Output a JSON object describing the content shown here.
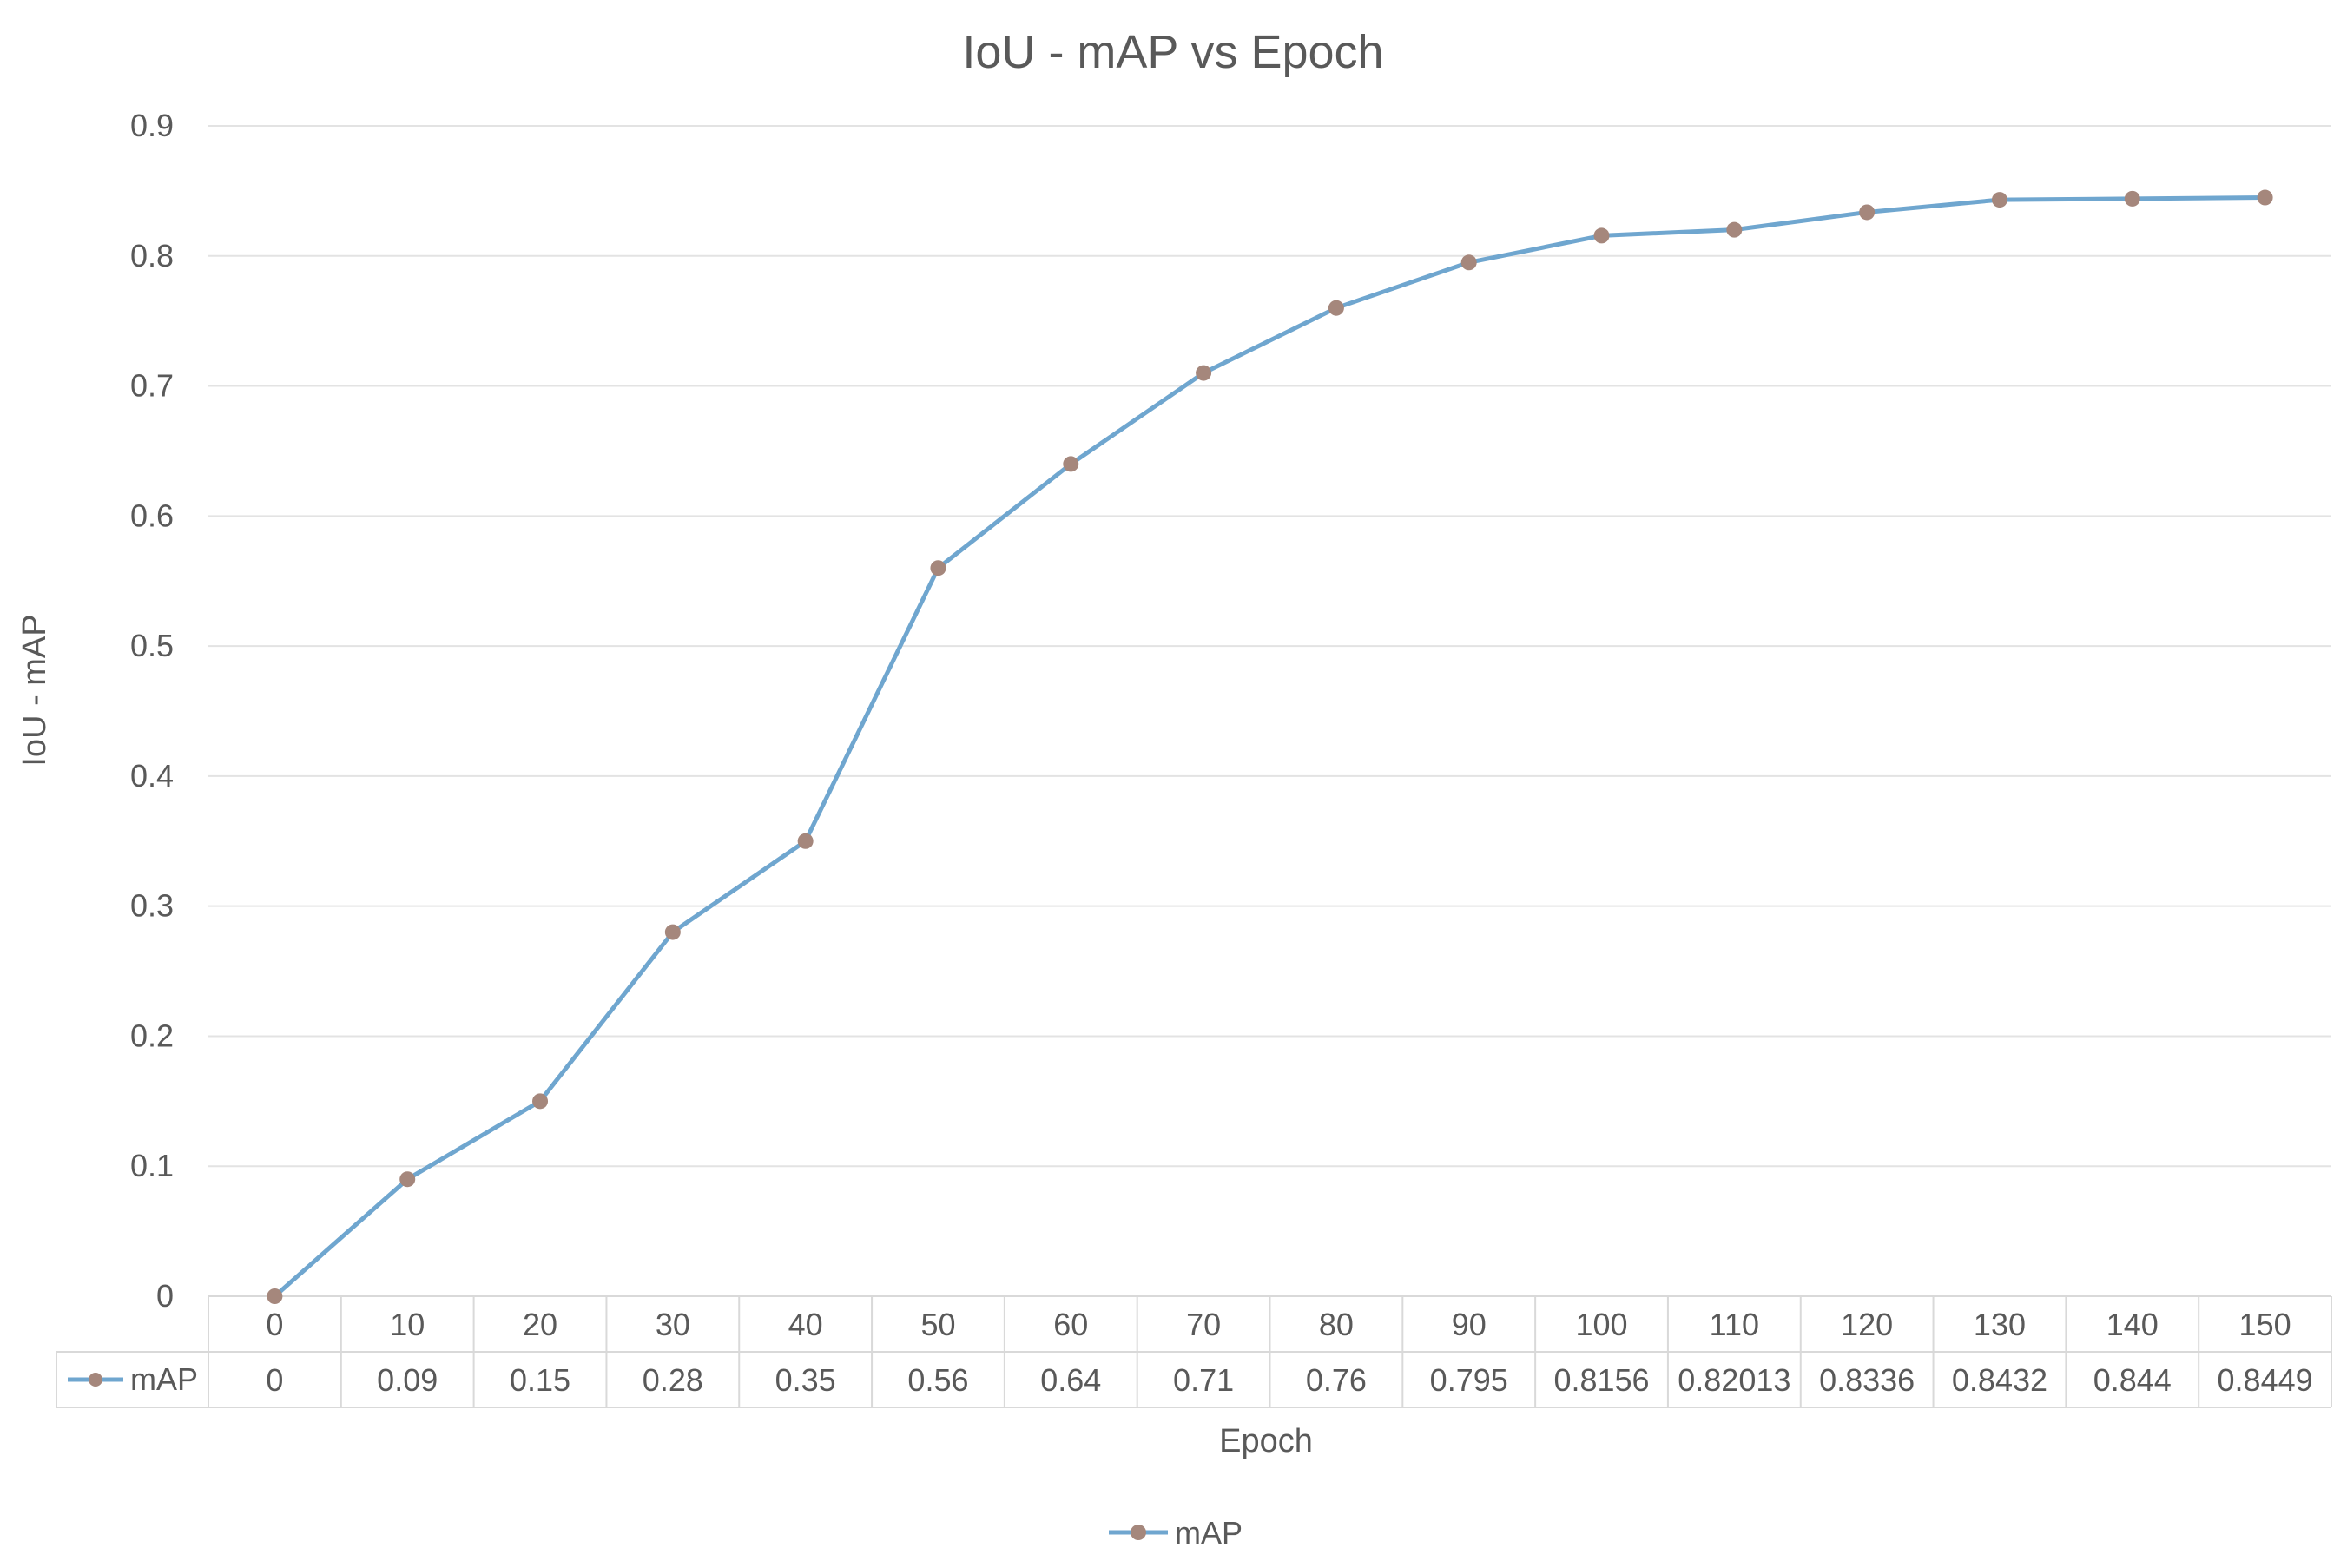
{
  "chart_data": {
    "type": "line",
    "title": "IoU - mAP vs Epoch",
    "xlabel": "Epoch",
    "ylabel": "IoU - mAP",
    "categories": [
      "0",
      "10",
      "20",
      "30",
      "40",
      "50",
      "60",
      "70",
      "80",
      "90",
      "100",
      "110",
      "120",
      "130",
      "140",
      "150"
    ],
    "series": [
      {
        "name": "mAP",
        "values": [
          0,
          0.09,
          0.15,
          0.28,
          0.35,
          0.56,
          0.64,
          0.71,
          0.76,
          0.795,
          0.8156,
          0.82013,
          0.8336,
          0.8432,
          0.844,
          0.8449
        ],
        "value_labels": [
          "0",
          "0.09",
          "0.15",
          "0.28",
          "0.35",
          "0.56",
          "0.64",
          "0.71",
          "0.76",
          "0.795",
          "0.8156",
          "0.82013",
          "0.8336",
          "0.8432",
          "0.844",
          "0.8449"
        ]
      }
    ],
    "ylim": [
      0,
      0.9
    ],
    "yticks": [
      "0",
      "0.1",
      "0.2",
      "0.3",
      "0.4",
      "0.5",
      "0.6",
      "0.7",
      "0.8",
      "0.9"
    ],
    "grid": true,
    "legend_position": "bottom",
    "data_table": true
  },
  "colors": {
    "line": "#6fa6cf",
    "marker": "#a5877c",
    "grid": "#e3e3e3",
    "text": "#595959",
    "title": "#595959",
    "table_border": "#d9d9d9"
  }
}
